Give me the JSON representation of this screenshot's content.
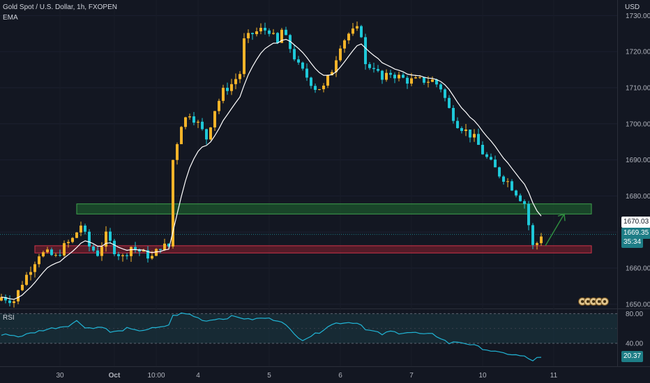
{
  "header": {
    "symbol_line": "Gold Spot / U.S. Dollar, 1h, FXOPEN",
    "indicator": "EMA",
    "currency": "USD"
  },
  "rsi_panel": {
    "label": "RSI",
    "value_tag": "20.37",
    "levels": [
      80,
      40
    ],
    "ylim": [
      10,
      85
    ]
  },
  "price_tags": {
    "last": "1670.03",
    "current": "1669.35",
    "countdown": "35:34"
  },
  "colors": {
    "background": "#131722",
    "up_candle": "#f5b429",
    "down_candle": "#1ec8d8",
    "ema_line": "#ffffff",
    "rsi_line": "#21b5d6",
    "resistance_zone": "#1f6b2f",
    "support_zone": "#8b1f2e",
    "arrow": "#2e8b3e"
  },
  "event_markers": [
    "event-icon",
    "event-icon",
    "event-icon",
    "event-icon",
    "event-icon"
  ],
  "chart_data": {
    "type": "candlestick",
    "price_axis": {
      "ticks": [
        "1730.00",
        "1720.00",
        "1710.00",
        "1700.00",
        "1690.00",
        "1680.00",
        "1670.00",
        "1660.00",
        "1650.00"
      ],
      "ylim": [
        1649,
        1732
      ]
    },
    "time_axis": {
      "labels": [
        "30",
        "Oct",
        "10:00",
        "4",
        "5",
        "6",
        "7",
        "10",
        "11"
      ],
      "label_bars": [
        14,
        27,
        37,
        47,
        64,
        81,
        98,
        115,
        132
      ]
    },
    "zones": [
      {
        "name": "resistance",
        "from": 1675.0,
        "to": 1677.8,
        "x_start": 18,
        "x_end": 141
      },
      {
        "name": "support",
        "from": 1664.2,
        "to": 1666.2,
        "x_start": 8,
        "x_end": 141
      }
    ],
    "arrow": {
      "x_from": 130,
      "y_from": 1666.2,
      "x_to": 134.5,
      "y_to": 1675.0
    },
    "close_path": [
      [
        0,
        1652
      ],
      [
        3,
        1651
      ],
      [
        5,
        1656
      ],
      [
        7,
        1660
      ],
      [
        9,
        1664
      ],
      [
        11,
        1664
      ],
      [
        13,
        1663
      ],
      [
        15,
        1666
      ],
      [
        17,
        1668
      ],
      [
        19,
        1672
      ],
      [
        21,
        1666
      ],
      [
        23,
        1664
      ],
      [
        25,
        1669
      ],
      [
        27,
        1665
      ],
      [
        29,
        1663
      ],
      [
        31,
        1666
      ],
      [
        34,
        1664
      ],
      [
        36,
        1663
      ],
      [
        38,
        1666
      ],
      [
        40,
        1666
      ],
      [
        41,
        1690
      ],
      [
        43,
        1700
      ],
      [
        45,
        1703
      ],
      [
        47,
        1700
      ],
      [
        49,
        1696
      ],
      [
        51,
        1704
      ],
      [
        53,
        1709
      ],
      [
        55,
        1711
      ],
      [
        57,
        1714
      ],
      [
        58,
        1723
      ],
      [
        60,
        1725
      ],
      [
        62,
        1726
      ],
      [
        64,
        1726
      ],
      [
        66,
        1722
      ],
      [
        67,
        1726
      ],
      [
        69,
        1721
      ],
      [
        71,
        1716
      ],
      [
        73,
        1713
      ],
      [
        75,
        1710
      ],
      [
        77,
        1710
      ],
      [
        79,
        1715
      ],
      [
        81,
        1722
      ],
      [
        83,
        1725
      ],
      [
        85,
        1726
      ],
      [
        86,
        1725
      ],
      [
        87,
        1716
      ],
      [
        89,
        1716
      ],
      [
        91,
        1712
      ],
      [
        93,
        1714
      ],
      [
        95,
        1713
      ],
      [
        97,
        1712
      ],
      [
        99,
        1712
      ],
      [
        101,
        1712
      ],
      [
        103,
        1712
      ],
      [
        105,
        1710
      ],
      [
        107,
        1704
      ],
      [
        109,
        1700
      ],
      [
        111,
        1698
      ],
      [
        113,
        1696
      ],
      [
        115,
        1692
      ],
      [
        117,
        1689
      ],
      [
        119,
        1686
      ],
      [
        121,
        1684
      ],
      [
        123,
        1681
      ],
      [
        125,
        1678
      ],
      [
        126,
        1672
      ],
      [
        127,
        1666
      ],
      [
        128,
        1667
      ],
      [
        129,
        1669.35
      ]
    ],
    "rsi_path": [
      [
        0,
        51
      ],
      [
        2,
        52
      ],
      [
        4,
        49
      ],
      [
        6,
        52
      ],
      [
        8,
        55
      ],
      [
        10,
        58
      ],
      [
        12,
        60
      ],
      [
        14,
        62
      ],
      [
        16,
        64
      ],
      [
        18,
        70
      ],
      [
        20,
        62
      ],
      [
        22,
        60
      ],
      [
        24,
        63
      ],
      [
        26,
        55
      ],
      [
        28,
        56
      ],
      [
        30,
        60
      ],
      [
        32,
        57
      ],
      [
        34,
        58
      ],
      [
        36,
        60
      ],
      [
        38,
        61
      ],
      [
        40,
        65
      ],
      [
        41,
        77
      ],
      [
        43,
        80
      ],
      [
        45,
        79
      ],
      [
        47,
        74
      ],
      [
        49,
        70
      ],
      [
        51,
        73
      ],
      [
        53,
        73
      ],
      [
        55,
        76
      ],
      [
        57,
        75
      ],
      [
        59,
        72
      ],
      [
        61,
        73
      ],
      [
        63,
        74
      ],
      [
        65,
        72
      ],
      [
        67,
        70
      ],
      [
        68,
        64
      ],
      [
        70,
        52
      ],
      [
        72,
        45
      ],
      [
        74,
        50
      ],
      [
        76,
        55
      ],
      [
        78,
        63
      ],
      [
        80,
        67
      ],
      [
        82,
        68
      ],
      [
        84,
        68
      ],
      [
        86,
        66
      ],
      [
        87,
        58
      ],
      [
        89,
        56
      ],
      [
        91,
        52
      ],
      [
        93,
        56
      ],
      [
        95,
        54
      ],
      [
        97,
        55
      ],
      [
        99,
        54
      ],
      [
        101,
        52
      ],
      [
        103,
        52
      ],
      [
        105,
        47
      ],
      [
        107,
        40
      ],
      [
        109,
        42
      ],
      [
        111,
        40
      ],
      [
        113,
        37
      ],
      [
        115,
        33
      ],
      [
        117,
        30
      ],
      [
        119,
        27
      ],
      [
        121,
        26
      ],
      [
        123,
        24
      ],
      [
        125,
        22
      ],
      [
        126,
        19
      ],
      [
        127,
        17
      ],
      [
        128,
        20
      ],
      [
        129,
        20.37
      ]
    ]
  }
}
